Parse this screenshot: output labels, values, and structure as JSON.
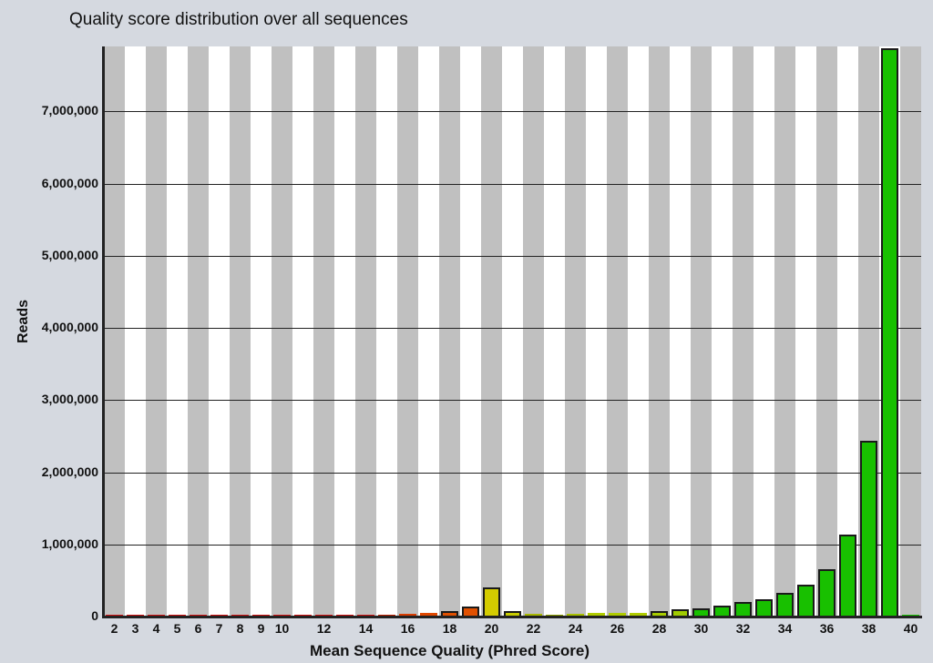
{
  "chart_data": {
    "type": "bar",
    "title": "Quality score distribution over all sequences",
    "xlabel": "Mean Sequence Quality (Phred Score)",
    "ylabel": "Reads",
    "ylim": [
      0,
      7900000
    ],
    "grid": true,
    "legend": null,
    "categories": [
      2,
      3,
      4,
      5,
      6,
      7,
      8,
      9,
      10,
      11,
      12,
      13,
      14,
      15,
      16,
      17,
      18,
      19,
      20,
      21,
      22,
      23,
      24,
      25,
      26,
      27,
      28,
      29,
      30,
      31,
      32,
      33,
      34,
      35,
      36,
      37,
      38,
      39,
      40
    ],
    "values": [
      10000,
      10000,
      10000,
      10000,
      10000,
      10000,
      10000,
      10000,
      10000,
      10000,
      10000,
      10000,
      10000,
      10000,
      35000,
      50000,
      70000,
      140000,
      410000,
      70000,
      35000,
      10000,
      35000,
      50000,
      50000,
      50000,
      70000,
      100000,
      120000,
      150000,
      200000,
      240000,
      330000,
      440000,
      660000,
      1130000,
      2430000,
      7870000,
      5000
    ],
    "colors": [
      "#d01010",
      "#d01010",
      "#d01010",
      "#d01010",
      "#d01010",
      "#d01010",
      "#d01010",
      "#d01010",
      "#d01010",
      "#d01010",
      "#d01010",
      "#d01010",
      "#d01010",
      "#c02000",
      "#d83c00",
      "#e04800",
      "#e05000",
      "#e05000",
      "#d4cc00",
      "#c8cc00",
      "#a8b800",
      "#90a000",
      "#a8c000",
      "#b0cc00",
      "#b0cc00",
      "#b0cc00",
      "#a8cc00",
      "#a0cc00",
      "#18c000",
      "#18c000",
      "#18c000",
      "#18c000",
      "#18c000",
      "#18c000",
      "#18c000",
      "#18c000",
      "#18c000",
      "#18c000",
      "#18c000"
    ],
    "yticks": [
      {
        "value": 0,
        "label": "0"
      },
      {
        "value": 1000000,
        "label": "1,000,000"
      },
      {
        "value": 2000000,
        "label": "2,000,000"
      },
      {
        "value": 3000000,
        "label": "3,000,000"
      },
      {
        "value": 4000000,
        "label": "4,000,000"
      },
      {
        "value": 5000000,
        "label": "5,000,000"
      },
      {
        "value": 6000000,
        "label": "6,000,000"
      },
      {
        "value": 7000000,
        "label": "7,000,000"
      }
    ],
    "xtick_labels": [
      {
        "index": 0,
        "label": "2"
      },
      {
        "index": 1,
        "label": "3"
      },
      {
        "index": 2,
        "label": "4"
      },
      {
        "index": 3,
        "label": "5"
      },
      {
        "index": 4,
        "label": "6"
      },
      {
        "index": 5,
        "label": "7"
      },
      {
        "index": 6,
        "label": "8"
      },
      {
        "index": 7,
        "label": "9"
      },
      {
        "index": 8,
        "label": "10"
      },
      {
        "index": 10,
        "label": "12"
      },
      {
        "index": 12,
        "label": "14"
      },
      {
        "index": 14,
        "label": "16"
      },
      {
        "index": 16,
        "label": "18"
      },
      {
        "index": 18,
        "label": "20"
      },
      {
        "index": 20,
        "label": "22"
      },
      {
        "index": 22,
        "label": "24"
      },
      {
        "index": 24,
        "label": "26"
      },
      {
        "index": 26,
        "label": "28"
      },
      {
        "index": 28,
        "label": "30"
      },
      {
        "index": 30,
        "label": "32"
      },
      {
        "index": 32,
        "label": "34"
      },
      {
        "index": 34,
        "label": "36"
      },
      {
        "index": 36,
        "label": "38"
      },
      {
        "index": 38,
        "label": "40"
      }
    ]
  },
  "style": {
    "stripe_color": "#c0c0c0",
    "background": "#d5d9e0"
  }
}
